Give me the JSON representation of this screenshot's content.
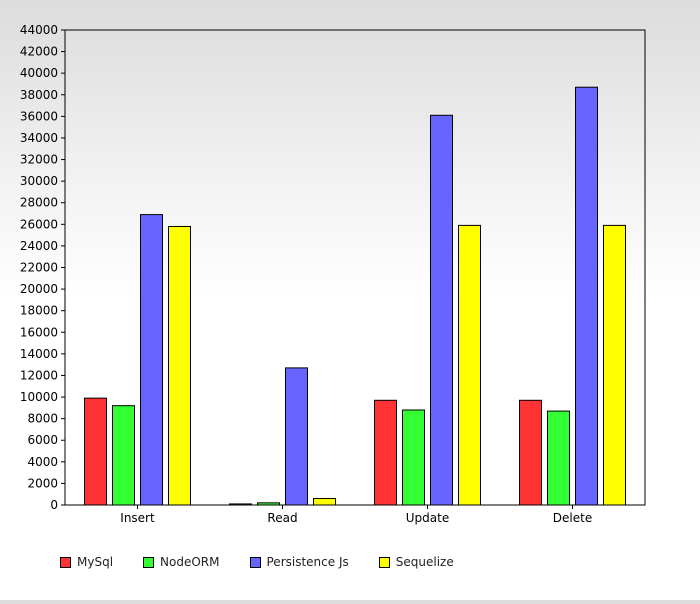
{
  "chart_data": {
    "type": "bar",
    "categories": [
      "Insert",
      "Read",
      "Update",
      "Delete"
    ],
    "series": [
      {
        "name": "MySql",
        "values": [
          9900,
          100,
          9700,
          9700
        ],
        "color": "#ff3333"
      },
      {
        "name": "NodeORM",
        "values": [
          9200,
          200,
          8800,
          8700
        ],
        "color": "#33ff33"
      },
      {
        "name": "Persistence Js",
        "values": [
          26900,
          12700,
          36100,
          38700
        ],
        "color": "#6666ff"
      },
      {
        "name": "Sequelize",
        "values": [
          25800,
          600,
          25900,
          25900
        ],
        "color": "#ffff00"
      }
    ],
    "yticks": [
      0,
      2000,
      4000,
      6000,
      8000,
      10000,
      12000,
      14000,
      16000,
      18000,
      20000,
      22000,
      24000,
      26000,
      28000,
      30000,
      32000,
      34000,
      36000,
      38000,
      40000,
      42000,
      44000
    ],
    "ylim": [
      0,
      44000
    ],
    "grid": false,
    "legend_position": "bottom-left"
  }
}
